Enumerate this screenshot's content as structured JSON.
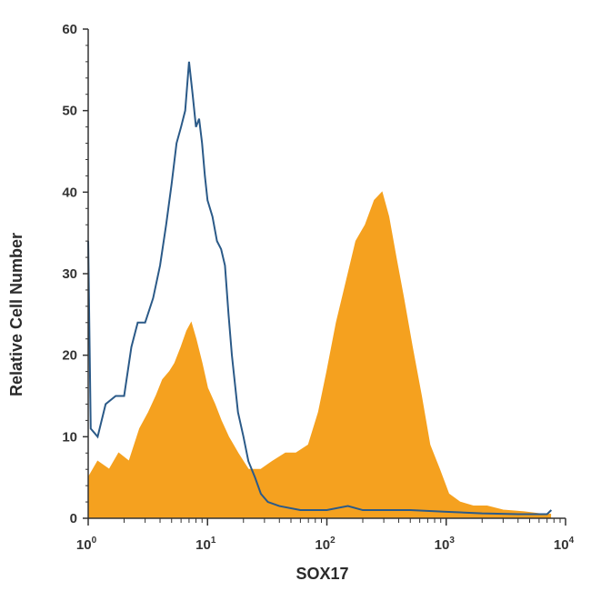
{
  "chart_data": {
    "type": "area",
    "xlabel": "SOX17",
    "ylabel": "Relative Cell Number",
    "xscale": "log",
    "xlim": [
      1,
      10000
    ],
    "ylim": [
      0,
      60
    ],
    "grid": false,
    "y_ticks": [
      0,
      10,
      20,
      30,
      40,
      50,
      60
    ],
    "y_tick_labels": [
      "0",
      "10",
      "20",
      "30",
      "40",
      "50",
      "60"
    ],
    "x_ticks": [
      1,
      10,
      100,
      1000,
      10000
    ],
    "x_tick_labels": [
      {
        "base": "10",
        "exp": "0"
      },
      {
        "base": "10",
        "exp": "1"
      },
      {
        "base": "10",
        "exp": "2"
      },
      {
        "base": "10",
        "exp": "3"
      },
      {
        "base": "10",
        "exp": "4"
      }
    ],
    "series": [
      {
        "style": "filled",
        "color": "#f5a11f",
        "points": [
          [
            1.0,
            5
          ],
          [
            1.2,
            7
          ],
          [
            1.5,
            6
          ],
          [
            1.8,
            8
          ],
          [
            2.2,
            7
          ],
          [
            2.7,
            11
          ],
          [
            3.2,
            13
          ],
          [
            3.7,
            15
          ],
          [
            4.2,
            17
          ],
          [
            4.8,
            18
          ],
          [
            5.3,
            19
          ],
          [
            6.0,
            21
          ],
          [
            6.7,
            23
          ],
          [
            7.3,
            24
          ],
          [
            8.0,
            22
          ],
          [
            9.0,
            19
          ],
          [
            10.0,
            16
          ],
          [
            11.5,
            14
          ],
          [
            13.0,
            12
          ],
          [
            15.0,
            10
          ],
          [
            18.0,
            8
          ],
          [
            22.0,
            6
          ],
          [
            28.0,
            6
          ],
          [
            35.0,
            7
          ],
          [
            45.0,
            8
          ],
          [
            55.0,
            8
          ],
          [
            70.0,
            9
          ],
          [
            85.0,
            13
          ],
          [
            100.0,
            18
          ],
          [
            120.0,
            24
          ],
          [
            145.0,
            29
          ],
          [
            175.0,
            34
          ],
          [
            210.0,
            36
          ],
          [
            250.0,
            39
          ],
          [
            290.0,
            40
          ],
          [
            330.0,
            37
          ],
          [
            380.0,
            32
          ],
          [
            440.0,
            27
          ],
          [
            520.0,
            21
          ],
          [
            620.0,
            15
          ],
          [
            730.0,
            9
          ],
          [
            880.0,
            6
          ],
          [
            1050.0,
            3
          ],
          [
            1300.0,
            2
          ],
          [
            1700.0,
            1.5
          ],
          [
            2200.0,
            1.5
          ],
          [
            3000.0,
            1
          ],
          [
            4500.0,
            0.8
          ],
          [
            6500.0,
            0.5
          ],
          [
            7500.0,
            0.5
          ]
        ]
      },
      {
        "style": "line",
        "color": "#2b5a88",
        "points": [
          [
            1.0,
            34
          ],
          [
            1.05,
            11
          ],
          [
            1.2,
            10
          ],
          [
            1.4,
            14
          ],
          [
            1.7,
            15
          ],
          [
            2.0,
            15
          ],
          [
            2.3,
            21
          ],
          [
            2.6,
            24
          ],
          [
            3.0,
            24
          ],
          [
            3.5,
            27
          ],
          [
            4.0,
            31
          ],
          [
            4.5,
            36
          ],
          [
            5.0,
            41
          ],
          [
            5.5,
            46
          ],
          [
            6.0,
            48
          ],
          [
            6.5,
            50
          ],
          [
            7.0,
            56
          ],
          [
            7.5,
            52
          ],
          [
            8.0,
            48
          ],
          [
            8.5,
            49
          ],
          [
            9.0,
            46
          ],
          [
            9.5,
            42
          ],
          [
            10.0,
            39
          ],
          [
            11.0,
            37
          ],
          [
            12.0,
            34
          ],
          [
            13.0,
            33
          ],
          [
            14.0,
            31
          ],
          [
            15.0,
            25
          ],
          [
            16.0,
            20
          ],
          [
            18.0,
            13
          ],
          [
            20.0,
            10
          ],
          [
            22.0,
            7
          ],
          [
            25.0,
            5
          ],
          [
            28.0,
            3
          ],
          [
            32.0,
            2
          ],
          [
            40.0,
            1.5
          ],
          [
            60.0,
            1
          ],
          [
            100.0,
            1
          ],
          [
            150.0,
            1.5
          ],
          [
            200.0,
            1
          ],
          [
            300.0,
            1
          ],
          [
            500.0,
            1
          ],
          [
            1000.0,
            0.8
          ],
          [
            2000.0,
            0.6
          ],
          [
            4000.0,
            0.5
          ],
          [
            7000.0,
            0.5
          ],
          [
            7600.0,
            1
          ]
        ]
      }
    ]
  }
}
